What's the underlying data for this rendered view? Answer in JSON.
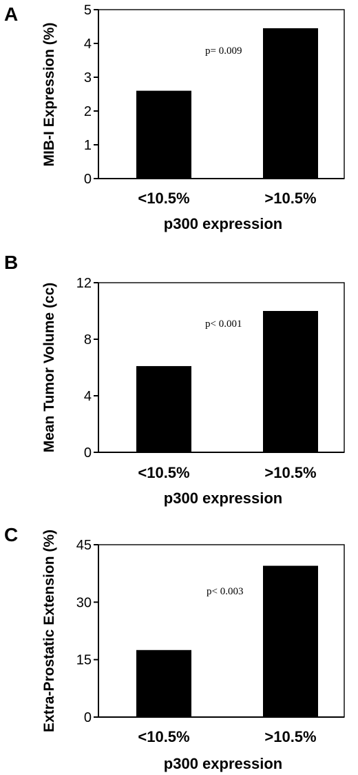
{
  "chart_data": [
    {
      "type": "bar",
      "panel": "A",
      "categories": [
        "<10.5%",
        ">10.5%"
      ],
      "values": [
        2.6,
        4.45
      ],
      "title": "",
      "xlabel": "p300 expression",
      "ylabel": "MIB-I Expression (%)",
      "ylim": [
        0,
        5
      ],
      "yticks": [
        0,
        1,
        2,
        3,
        4,
        5
      ],
      "annotation": "p= 0.009"
    },
    {
      "type": "bar",
      "panel": "B",
      "categories": [
        "<10.5%",
        ">10.5%"
      ],
      "values": [
        6.1,
        10.0
      ],
      "title": "",
      "xlabel": "p300 expression",
      "ylabel": "Mean Tumor Volume (cc)",
      "ylim": [
        0,
        12
      ],
      "yticks": [
        0,
        4,
        8,
        12
      ],
      "annotation": "p< 0.001"
    },
    {
      "type": "bar",
      "panel": "C",
      "categories": [
        "<10.5%",
        ">10.5%"
      ],
      "values": [
        17.5,
        39.5
      ],
      "title": "",
      "xlabel": "p300 expression",
      "ylabel": "Extra-Prostatic Extension (%)",
      "ylim": [
        0,
        45
      ],
      "yticks": [
        0,
        15,
        30,
        45
      ],
      "annotation": "p< 0.003"
    }
  ]
}
